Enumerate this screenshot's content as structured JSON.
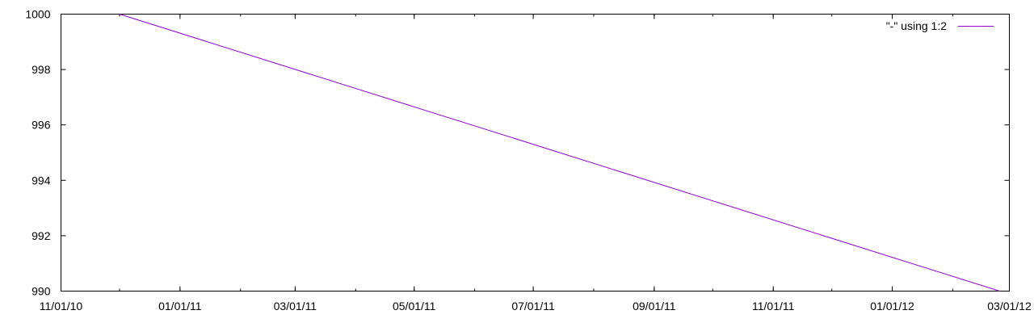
{
  "chart_data": {
    "type": "line",
    "xlabel": "",
    "ylabel": "",
    "x_axis_type": "date",
    "xlim": [
      "2010-11-01",
      "2012-03-01"
    ],
    "ylim": [
      990,
      1000
    ],
    "x_ticks": [
      {
        "date": "2010-11-01",
        "label": "11/01/10"
      },
      {
        "date": "2011-01-01",
        "label": "01/01/11"
      },
      {
        "date": "2011-03-01",
        "label": "03/01/11"
      },
      {
        "date": "2011-05-01",
        "label": "05/01/11"
      },
      {
        "date": "2011-07-01",
        "label": "07/01/11"
      },
      {
        "date": "2011-09-01",
        "label": "09/01/11"
      },
      {
        "date": "2011-11-01",
        "label": "11/01/11"
      },
      {
        "date": "2012-01-01",
        "label": "01/01/12"
      },
      {
        "date": "2012-03-01",
        "label": "03/01/12"
      }
    ],
    "y_ticks": [
      990,
      992,
      994,
      996,
      998,
      1000
    ],
    "grid": false,
    "legend_position": "top-right",
    "series": [
      {
        "name": "\"-\" using 1:2",
        "color": "#9400d3",
        "points": [
          {
            "x": "2010-12-01",
            "y": 1000
          },
          {
            "x": "2012-02-25",
            "y": 990
          }
        ]
      }
    ]
  }
}
